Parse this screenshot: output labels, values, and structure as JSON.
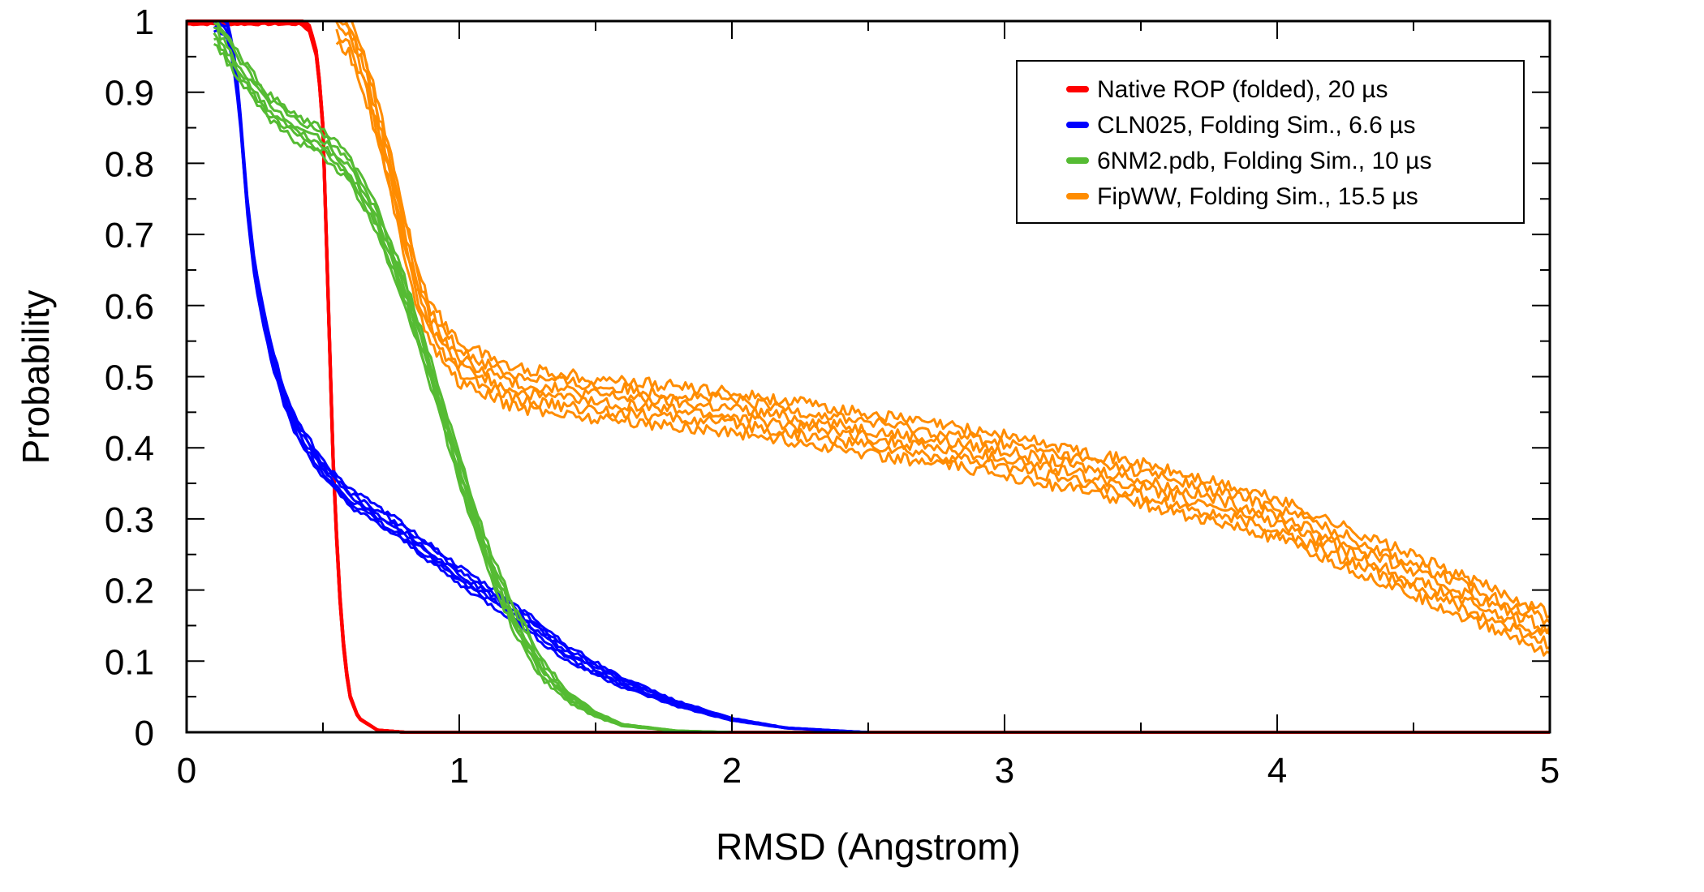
{
  "chart_data": {
    "type": "line",
    "title": "",
    "xlabel": "RMSD (Angstrom)",
    "ylabel": "Probability",
    "xlim": [
      0,
      5
    ],
    "ylim": [
      0,
      1
    ],
    "x_ticks": [
      0,
      1,
      2,
      3,
      4,
      5
    ],
    "x_tick_labels": [
      "0",
      "1",
      "2",
      "3",
      "4",
      "5"
    ],
    "x_minor_step": 0.5,
    "y_ticks": [
      0,
      0.1,
      0.2,
      0.3,
      0.4,
      0.5,
      0.6,
      0.7,
      0.8,
      0.9,
      1
    ],
    "y_tick_labels": [
      "0",
      "0.1",
      "0.2",
      "0.3",
      "0.4",
      "0.5",
      "0.6",
      "0.7",
      "0.8",
      "0.9",
      "1"
    ],
    "y_minor_step": 0.05,
    "grid": false,
    "legend_position": "top-right",
    "series": [
      {
        "name": "Native ROP (folded), 20 µs",
        "color": "#ff0000",
        "spread": 0.004,
        "x": [
          0.0,
          0.42,
          0.45,
          0.48,
          0.5,
          0.52,
          0.54,
          0.56,
          0.58,
          0.6,
          0.63,
          0.7,
          0.8,
          5.0
        ],
        "y": [
          1.0,
          1.0,
          0.99,
          0.95,
          0.85,
          0.6,
          0.35,
          0.2,
          0.1,
          0.05,
          0.02,
          0.003,
          0.0,
          0.0
        ]
      },
      {
        "name": "CLN025, Folding Sim., 6.6 µs",
        "color": "#0000ff",
        "spread": 0.012,
        "x": [
          0.1,
          0.15,
          0.18,
          0.2,
          0.22,
          0.25,
          0.3,
          0.35,
          0.4,
          0.5,
          0.6,
          0.8,
          1.0,
          1.2,
          1.4,
          1.6,
          1.8,
          2.0,
          2.2,
          2.5,
          5.0
        ],
        "y": [
          1.0,
          0.99,
          0.93,
          0.85,
          0.75,
          0.65,
          0.55,
          0.48,
          0.43,
          0.37,
          0.33,
          0.28,
          0.22,
          0.17,
          0.11,
          0.07,
          0.04,
          0.018,
          0.006,
          0.0,
          0.0
        ]
      },
      {
        "name": "6NM2.pdb, Folding Sim., 10 µs",
        "color": "#55bb33",
        "spread": 0.018,
        "x": [
          0.1,
          0.2,
          0.3,
          0.4,
          0.5,
          0.6,
          0.7,
          0.8,
          0.9,
          1.0,
          1.1,
          1.2,
          1.3,
          1.4,
          1.5,
          1.6,
          1.8,
          2.0,
          5.0
        ],
        "y": [
          0.99,
          0.93,
          0.88,
          0.85,
          0.83,
          0.79,
          0.72,
          0.62,
          0.5,
          0.37,
          0.25,
          0.16,
          0.09,
          0.05,
          0.025,
          0.01,
          0.002,
          0.0,
          0.0
        ]
      },
      {
        "name": "FipWW, Folding Sim., 15.5 µs",
        "color": "#ff8c00",
        "spread": 0.028,
        "x": [
          0.55,
          0.6,
          0.65,
          0.7,
          0.75,
          0.8,
          0.85,
          0.9,
          1.0,
          1.2,
          1.5,
          2.0,
          2.5,
          3.0,
          3.5,
          4.0,
          4.5,
          5.0
        ],
        "y": [
          1.0,
          0.98,
          0.93,
          0.86,
          0.78,
          0.7,
          0.62,
          0.57,
          0.52,
          0.485,
          0.47,
          0.45,
          0.42,
          0.39,
          0.35,
          0.3,
          0.22,
          0.14
        ]
      }
    ]
  }
}
